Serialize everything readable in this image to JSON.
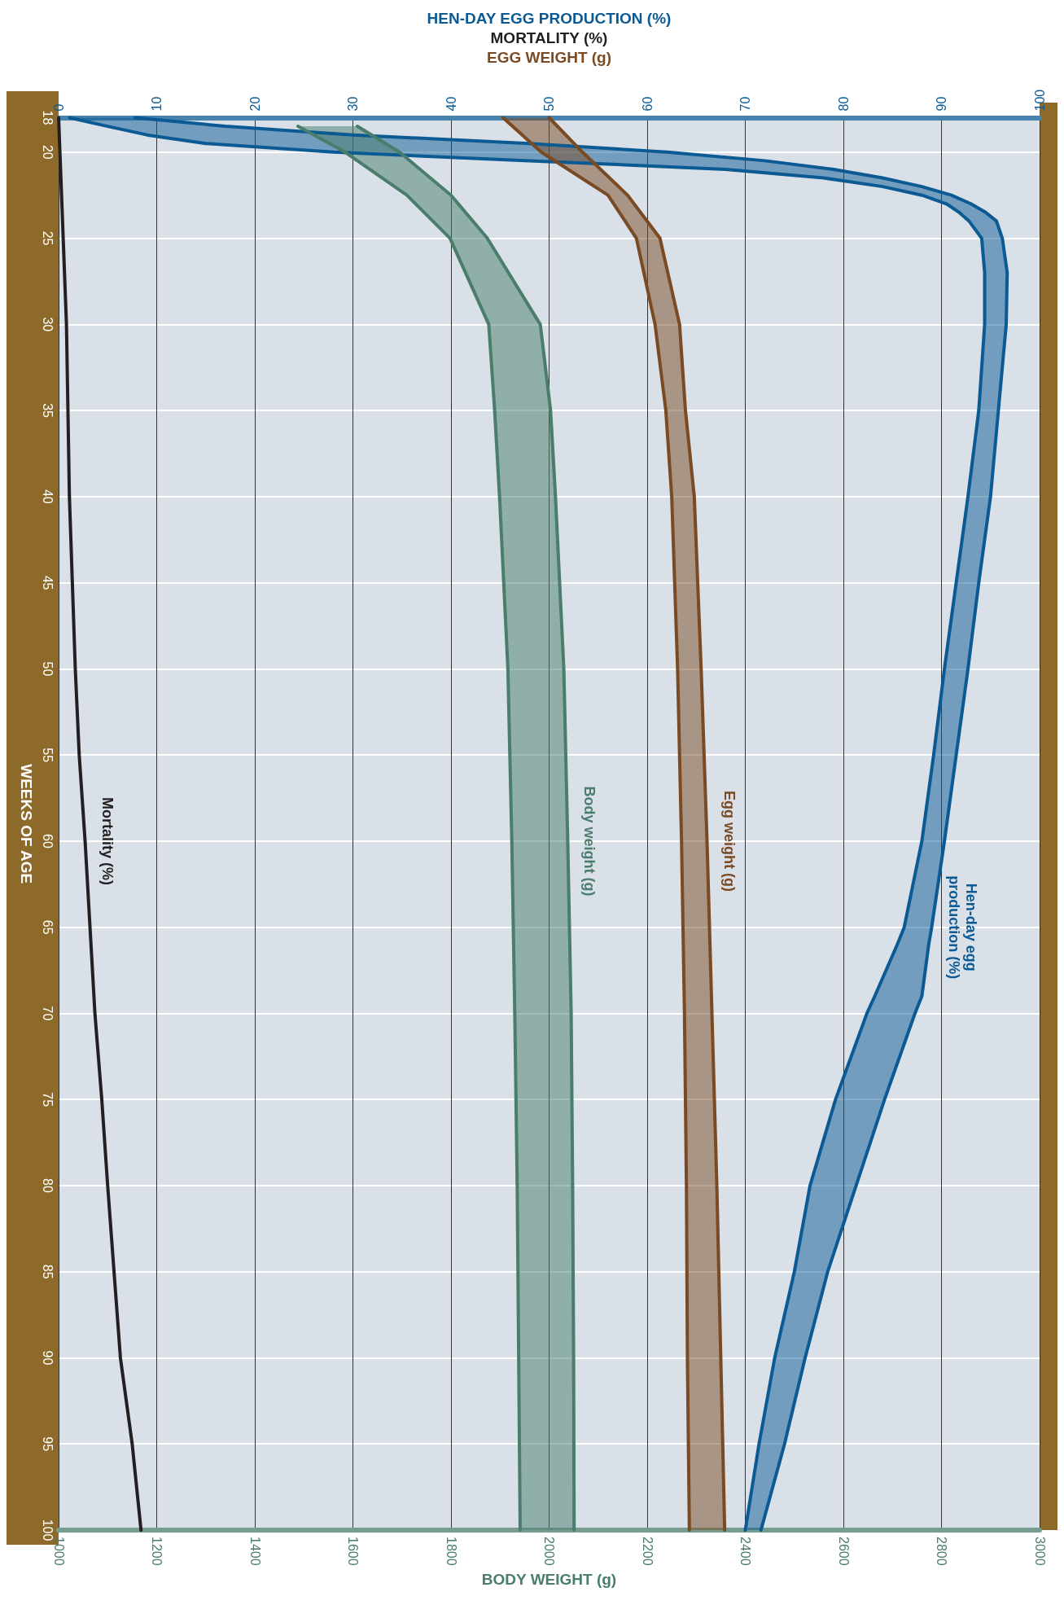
{
  "chart_data": {
    "type": "line",
    "orientation": "horizontal",
    "xlabel": "BODY WEIGHT (g)",
    "x2label": "HEN-DAY EGG PRODUCTION (%)\nMORTALITY (%)\nEGG WEIGHT (g)",
    "ylabel": "WEEKS OF AGE",
    "xlim": [
      1000,
      3000
    ],
    "xticks": [
      1000,
      1200,
      1400,
      1600,
      1800,
      2000,
      2200,
      2400,
      2600,
      2800,
      3000
    ],
    "x2lim": [
      0,
      100
    ],
    "x2ticks": [
      0,
      10,
      20,
      30,
      40,
      50,
      60,
      70,
      80,
      90,
      100
    ],
    "ylim": [
      100,
      18
    ],
    "yticks": [
      18,
      20,
      25,
      30,
      35,
      40,
      45,
      50,
      55,
      60,
      65,
      70,
      75,
      80,
      85,
      90,
      95,
      100
    ],
    "grid": true,
    "legend": false,
    "line_style": "solid",
    "series": [
      {
        "name": "Hen-day egg\nproduction (%)",
        "color": "#0b5a93",
        "axis": "x2",
        "x": [
          18,
          18.5,
          19,
          19.5,
          20,
          20.5,
          21,
          21.5,
          22,
          22.5,
          23,
          23.5,
          24,
          25,
          27,
          30,
          35,
          40,
          45,
          50,
          55,
          60,
          65,
          66,
          69,
          70,
          75,
          80,
          85,
          90,
          95,
          100
        ],
        "values": [
          1.1,
          5,
          9,
          15,
          28,
          48,
          68,
          78,
          84,
          88,
          90.5,
          91.8,
          92.8,
          94.1,
          94.4,
          94.4,
          93.8,
          92.7,
          91.5,
          90.3,
          89.2,
          88,
          86.2,
          85.5,
          83.2,
          82.4,
          79.2,
          76.6,
          75,
          73,
          71.4,
          70
        ],
        "lower": [
          1.1,
          5,
          9,
          15,
          28,
          48,
          68,
          78,
          84,
          88,
          90.5,
          91.8,
          92.8,
          94.1,
          94.4,
          94.4,
          93.8,
          92.7,
          91.5,
          90.3,
          89.2,
          88,
          86.2,
          85.5,
          83.2,
          82.4,
          79.2,
          76.6,
          75,
          73,
          71.4,
          70
        ],
        "upper": [
          7.8,
          17,
          30,
          48,
          62,
          72,
          79,
          84,
          88,
          91,
          93,
          94.5,
          95.6,
          96.2,
          96.7,
          96.6,
          95.8,
          95,
          93.8,
          92.7,
          91.5,
          90.3,
          89,
          88.7,
          88,
          87.3,
          84.2,
          81.3,
          78.4,
          76.1,
          74,
          71.6
        ]
      },
      {
        "color": "#0b5a93",
        "axis": "x2",
        "x": [
          18,
          18.5,
          19,
          19.5,
          20,
          20.5,
          21,
          21.5,
          22,
          22.5,
          23,
          23.5,
          24,
          25,
          27,
          30,
          35,
          40,
          45,
          50,
          55,
          60,
          65,
          66,
          69,
          70,
          75,
          80,
          85,
          90,
          95,
          100
        ],
        "values": [
          7.8,
          17,
          30,
          48,
          62,
          72,
          79,
          84,
          88,
          91,
          93,
          94.5,
          95.6,
          96.2,
          96.7,
          96.6,
          95.8,
          95,
          93.8,
          92.7,
          91.5,
          90.3,
          89,
          88.7,
          88,
          87.3,
          84.2,
          81.3,
          78.4,
          76.1,
          74,
          71.6
        ]
      },
      {
        "name": "Mortality (%)",
        "color": "#231f20",
        "axis": "x2",
        "x": [
          18,
          30,
          40,
          50,
          55,
          60,
          70,
          75,
          80,
          90,
          95,
          100
        ],
        "values": [
          0,
          0.8,
          1.1,
          1.7,
          2.1,
          2.7,
          3.7,
          4.4,
          5,
          6.3,
          7.5,
          8.4
        ]
      },
      {
        "name": "Egg weight (g)",
        "color": "#7a4a22",
        "axis": "x2",
        "x": [
          18,
          20,
          22.5,
          25,
          30,
          35,
          40,
          50,
          60,
          70,
          80,
          90,
          100
        ],
        "values": [
          45.3,
          49.2,
          56,
          58.9,
          60.8,
          61.9,
          62.5,
          63.1,
          63.5,
          63.8,
          64,
          64.1,
          64.3
        ],
        "lower": [
          45.3,
          49.2,
          56,
          58.9,
          60.8,
          61.9,
          62.5,
          63.1,
          63.5,
          63.8,
          64,
          64.1,
          64.3
        ],
        "upper": [
          50,
          53.4,
          58,
          61.3,
          63.3,
          63.9,
          64.8,
          65.5,
          66.1,
          66.6,
          67.1,
          67.5,
          67.9
        ]
      },
      {
        "color": "#7a4a22",
        "axis": "x2",
        "x": [
          18,
          20,
          22.5,
          25,
          30,
          35,
          40,
          50,
          60,
          70,
          80,
          90,
          100
        ],
        "values": [
          50,
          53.4,
          58,
          61.3,
          63.3,
          63.9,
          64.8,
          65.5,
          66.1,
          66.6,
          67.1,
          67.5,
          67.9
        ]
      },
      {
        "name": "Body weight (g)",
        "color": "#4a7d6b",
        "x": [
          18.5,
          20,
          22.5,
          25,
          30,
          35,
          40,
          50,
          60,
          70,
          80,
          90,
          100
        ],
        "values": [
          1488,
          1584,
          1710,
          1798,
          1877,
          1889,
          1899,
          1916,
          1924,
          1930,
          1935,
          1938,
          1941
        ],
        "lower": [
          1488,
          1584,
          1710,
          1798,
          1877,
          1889,
          1899,
          1916,
          1924,
          1930,
          1935,
          1938,
          1941
        ],
        "upper": [
          1609,
          1695,
          1800,
          1874,
          1982,
          2003,
          2013,
          2030,
          2038,
          2045,
          2048,
          2050,
          2051
        ]
      },
      {
        "color": "#4a7d6b",
        "x": [
          18.5,
          20,
          22.5,
          25,
          30,
          35,
          40,
          50,
          60,
          70,
          80,
          90,
          100
        ],
        "values": [
          1609,
          1695,
          1800,
          1874,
          1982,
          2003,
          2013,
          2030,
          2038,
          2045,
          2048,
          2050,
          2051
        ]
      }
    ]
  }
}
